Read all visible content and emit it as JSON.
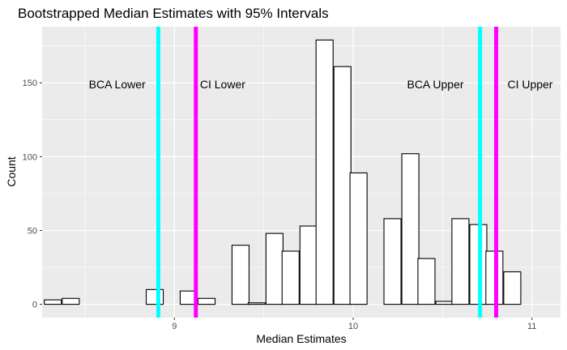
{
  "chart_data": {
    "type": "bar",
    "subtype": "histogram",
    "title": "Bootstrapped Median Estimates with 95% Intervals",
    "xlabel": "Median Estimates",
    "ylabel": "Count",
    "xlim": [
      8.26,
      11.16
    ],
    "ylim": [
      -9,
      188
    ],
    "x_ticks": [
      9,
      10,
      11
    ],
    "x_tick_labels": [
      "9",
      "10",
      "11"
    ],
    "y_ticks": [
      0,
      50,
      100,
      150
    ],
    "y_tick_labels": [
      "0",
      "50",
      "100",
      "150"
    ],
    "grid": true,
    "legend": "none",
    "bin_width": 0.0953,
    "bins": [
      {
        "x": 8.32,
        "count": 3
      },
      {
        "x": 8.42,
        "count": 4
      },
      {
        "x": 8.51,
        "count": 0
      },
      {
        "x": 8.61,
        "count": 0
      },
      {
        "x": 8.7,
        "count": 0
      },
      {
        "x": 8.8,
        "count": 0
      },
      {
        "x": 8.89,
        "count": 10
      },
      {
        "x": 8.99,
        "count": 0
      },
      {
        "x": 9.08,
        "count": 9
      },
      {
        "x": 9.18,
        "count": 4
      },
      {
        "x": 9.27,
        "count": 0
      },
      {
        "x": 9.37,
        "count": 40
      },
      {
        "x": 9.46,
        "count": 1
      },
      {
        "x": 9.56,
        "count": 48
      },
      {
        "x": 9.65,
        "count": 36
      },
      {
        "x": 9.75,
        "count": 53
      },
      {
        "x": 9.84,
        "count": 179
      },
      {
        "x": 9.94,
        "count": 161
      },
      {
        "x": 10.03,
        "count": 89
      },
      {
        "x": 10.13,
        "count": 0
      },
      {
        "x": 10.22,
        "count": 58
      },
      {
        "x": 10.32,
        "count": 102
      },
      {
        "x": 10.41,
        "count": 31
      },
      {
        "x": 10.51,
        "count": 2
      },
      {
        "x": 10.6,
        "count": 58
      },
      {
        "x": 10.7,
        "count": 54
      },
      {
        "x": 10.79,
        "count": 36
      },
      {
        "x": 10.89,
        "count": 22
      },
      {
        "x": 10.98,
        "count": 0
      }
    ],
    "vlines": [
      {
        "x": 8.91,
        "color": "#00ffff",
        "label": "BCA Lower",
        "label_x": 8.68,
        "label_y": 149
      },
      {
        "x": 9.12,
        "color": "#ff00ff",
        "label": "CI Lower",
        "label_x": 9.27,
        "label_y": 149
      },
      {
        "x": 10.71,
        "color": "#00ffff",
        "label": "BCA Upper",
        "label_x": 10.46,
        "label_y": 149
      },
      {
        "x": 10.8,
        "color": "#ff00ff",
        "label": "CI Upper",
        "label_x": 10.99,
        "label_y": 149
      }
    ],
    "colors": {
      "panel_background": "#ebebeb",
      "grid_major": "#ffffff",
      "bar_fill": "#ffffff",
      "bar_outline": "#000000"
    }
  }
}
